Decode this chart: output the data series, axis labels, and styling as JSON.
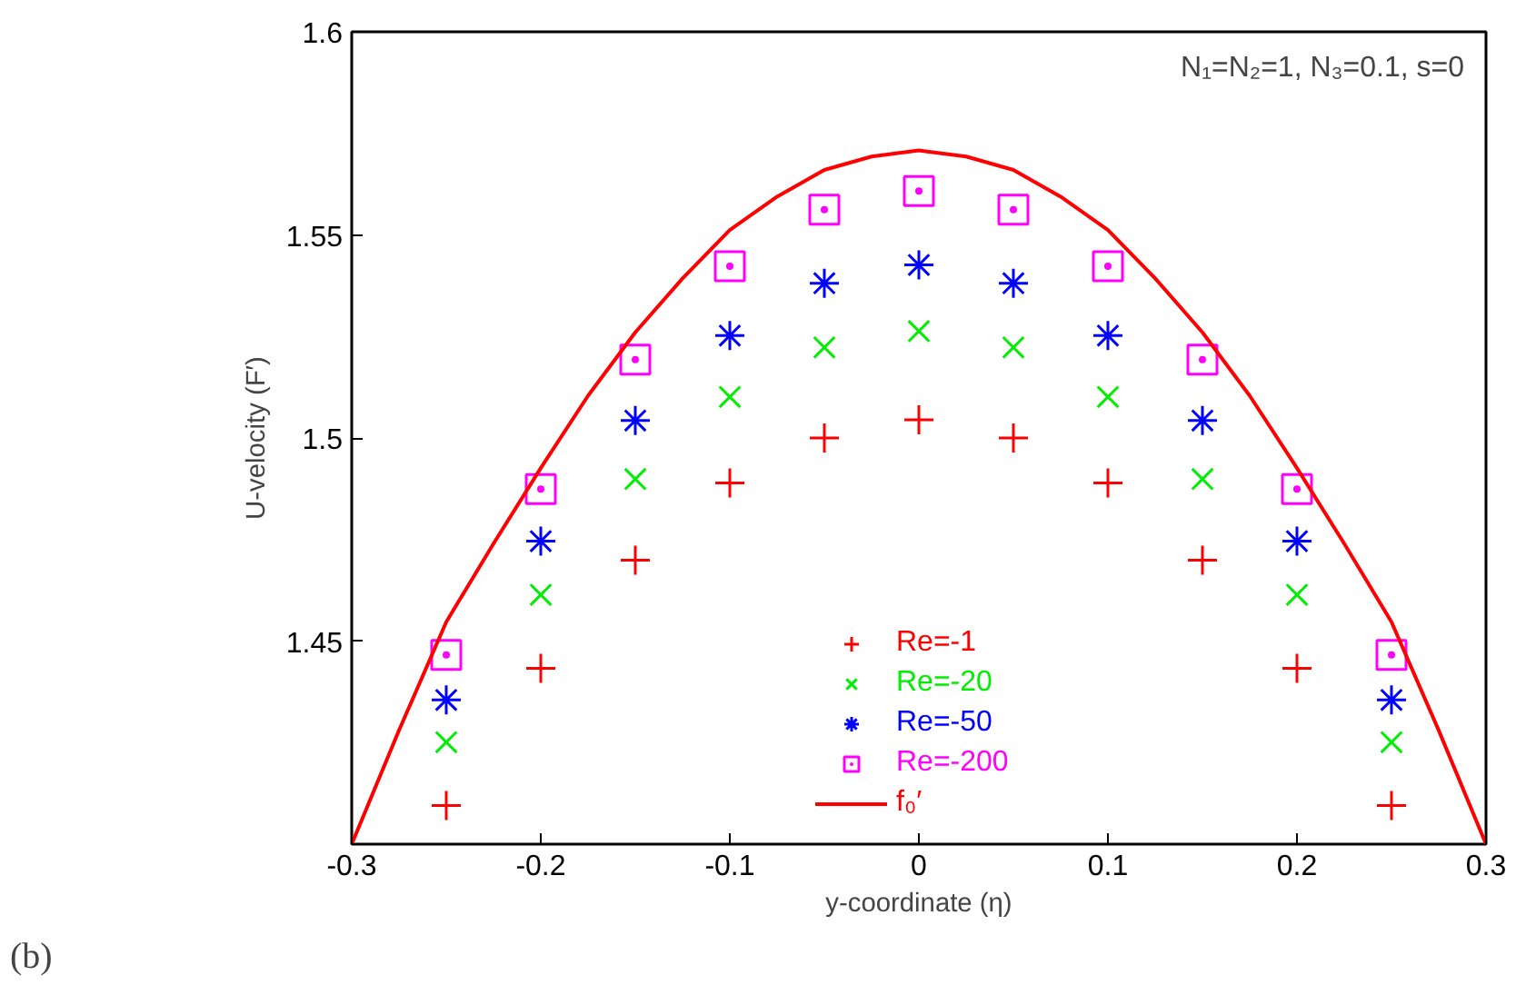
{
  "chart_data": {
    "type": "scatter",
    "xlabel": "y-coordinate (η)",
    "ylabel": "U-velocity (F′)",
    "x": [
      -0.25,
      -0.2,
      -0.15,
      -0.1,
      -0.05,
      0,
      0.05,
      0.1,
      0.15,
      0.2,
      0.25
    ],
    "xlim": [
      -0.3,
      0.3
    ],
    "xticks": [
      -0.3,
      -0.2,
      -0.1,
      0,
      0.1,
      0.2,
      0.3
    ],
    "ylim": [
      1.4,
      1.6
    ],
    "yticks": [
      {
        "value": 1.4,
        "label": null
      },
      1.45,
      1.5,
      1.55,
      1.6
    ],
    "grid": false,
    "legend": "bottom",
    "annotations": [
      "N₁=N₂=1, N₃=0.1, s=0",
      "(b)"
    ],
    "series": [
      {
        "name": "Re=-1",
        "color": "#ff0000",
        "values": [
          1.4095,
          1.4433,
          1.4699,
          1.4889,
          1.5,
          1.5045,
          1.5,
          1.4889,
          1.4699,
          1.4433,
          1.4095
        ]
      },
      {
        "name": "Re=-20",
        "color": "#00ee00",
        "values": [
          1.4251,
          1.4614,
          1.4899,
          1.5101,
          1.5223,
          1.5263,
          1.5223,
          1.5101,
          1.4899,
          1.4614,
          1.4251
        ]
      },
      {
        "name": "Re=-50",
        "color": "#0000ff",
        "values": [
          1.4355,
          1.4746,
          1.5043,
          1.5252,
          1.5381,
          1.5426,
          1.5381,
          1.5252,
          1.5043,
          1.4746,
          1.4355
        ]
      },
      {
        "name": "Re=-200",
        "color": "#ff00ff",
        "values": [
          1.4466,
          1.4874,
          1.5193,
          1.5423,
          1.5562,
          1.5608,
          1.5562,
          1.5423,
          1.5193,
          1.4874,
          1.4466
        ]
      },
      {
        "name": "f₀′",
        "type": "line",
        "color": "#ff0000",
        "line_style": "solid",
        "x": [
          -0.3,
          -0.275,
          -0.25,
          -0.225,
          -0.2,
          -0.175,
          -0.15,
          -0.125,
          -0.1,
          -0.075,
          -0.05,
          -0.025,
          0,
          0.025,
          0.05,
          0.075,
          0.1,
          0.125,
          0.15,
          0.175,
          0.2,
          0.225,
          0.25,
          0.275,
          0.3
        ],
        "values": [
          1.4,
          1.428,
          1.4547,
          1.474,
          1.4926,
          1.5104,
          1.526,
          1.5393,
          1.5512,
          1.5594,
          1.566,
          1.5693,
          1.5708,
          1.5693,
          1.566,
          1.5594,
          1.5512,
          1.5393,
          1.526,
          1.5104,
          1.4926,
          1.474,
          1.4547,
          1.428,
          1.4
        ]
      }
    ]
  }
}
